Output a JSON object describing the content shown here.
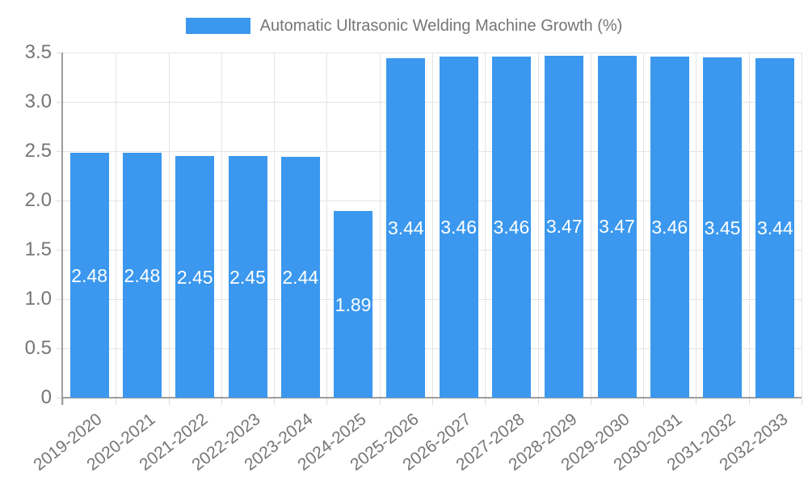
{
  "chart_data": {
    "type": "bar",
    "title": "Automatic Ultrasonic Welding Machine Growth (%)",
    "categories": [
      "2019-2020",
      "2020-2021",
      "2021-2022",
      "2022-2023",
      "2023-2024",
      "2024-2025",
      "2025-2026",
      "2026-2027",
      "2027-2028",
      "2028-2029",
      "2029-2030",
      "2030-2031",
      "2031-2032",
      "2032-2033"
    ],
    "values": [
      2.48,
      2.48,
      2.45,
      2.45,
      2.44,
      1.89,
      3.44,
      3.46,
      3.46,
      3.47,
      3.47,
      3.46,
      3.45,
      3.44
    ],
    "value_labels": [
      "2.48",
      "2.48",
      "2.45",
      "2.45",
      "2.44",
      "1.89",
      "3.44",
      "3.46",
      "3.46",
      "3.47",
      "3.47",
      "3.46",
      "3.45",
      "3.44"
    ],
    "xlabel": "",
    "ylabel": "",
    "ylim": [
      0,
      3.5
    ],
    "y_ticks": [
      {
        "label": "3.5",
        "value": 3.5
      },
      {
        "label": "3.0",
        "value": 3.0
      },
      {
        "label": "2.5",
        "value": 2.5
      },
      {
        "label": "2.0",
        "value": 2.0
      },
      {
        "label": "1.5",
        "value": 1.5
      },
      {
        "label": "1.0",
        "value": 1.0
      },
      {
        "label": "0.5",
        "value": 0.5
      },
      {
        "label": "0",
        "value": 0.0
      }
    ],
    "grid": true,
    "legend_position": "top",
    "colors": {
      "bar": "#3b98ee",
      "value_label": "#ffffff",
      "axis_text": "#757575",
      "grid_line": "#e3e3e3",
      "tick_line": "#dcdcdc",
      "axis_line": "#9e9e9e",
      "background": "#ffffff"
    }
  }
}
